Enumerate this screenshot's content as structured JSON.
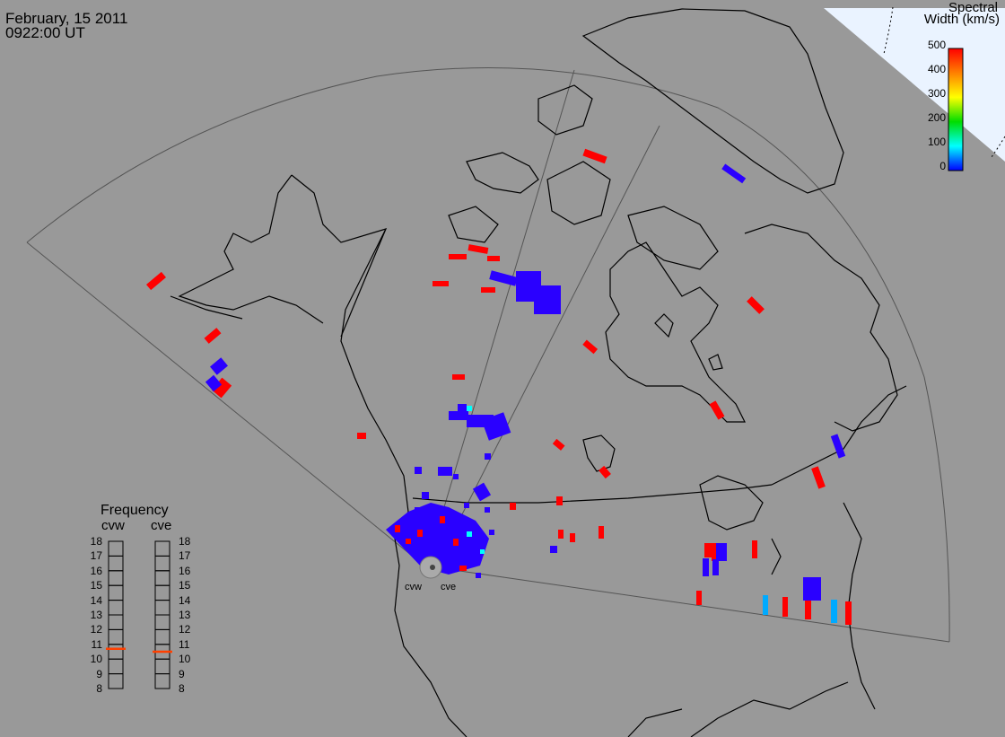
{
  "header": {
    "date": "February, 15 2011",
    "time": "0922:00 UT"
  },
  "legend": {
    "title_line1": "Spectral",
    "title_line2": "Width (km/s)",
    "ticks": [
      "500",
      "400",
      "300",
      "200",
      "100",
      "0"
    ],
    "range": [
      0,
      500
    ],
    "colors": [
      "#ff0000",
      "#ff8000",
      "#ffff00",
      "#00dd00",
      "#00ffff",
      "#0000ff"
    ]
  },
  "frequency_panel": {
    "title": "Frequency",
    "columns": [
      {
        "label": "cvw",
        "value_mhz": 10.7
      },
      {
        "label": "cve",
        "value_mhz": 10.5
      }
    ],
    "scale": [
      "18",
      "17",
      "16",
      "15",
      "14",
      "13",
      "12",
      "11",
      "10",
      "9",
      "8"
    ],
    "indicator_color": "#ff4000"
  },
  "radars": [
    {
      "code": "cvw"
    },
    {
      "code": "cve"
    }
  ],
  "colors": {
    "background": "#999999",
    "red_echo": "#ff0000",
    "blue_echo": "#2a00ff",
    "cyan_echo": "#00aaff"
  }
}
